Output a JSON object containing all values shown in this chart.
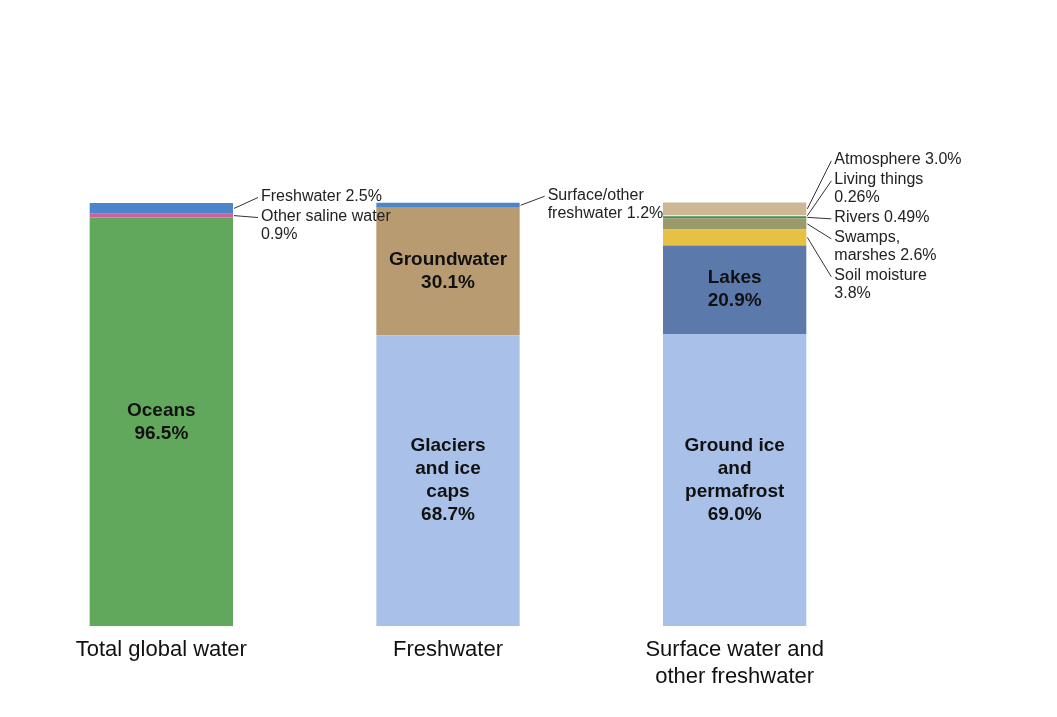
{
  "chart_data": {
    "type": "bar",
    "stacked": true,
    "tick_labels": "x",
    "categories": [
      "Total global water",
      "Freshwater",
      "Surface water and other freshwater"
    ],
    "series": [
      {
        "name": "Oceans",
        "color": "#62a85c",
        "values": [
          96.5,
          null,
          null
        ],
        "value_labels": [
          "96.5%",
          null,
          null
        ]
      },
      {
        "name": "Other saline water",
        "color": "#cf5fa0",
        "values": [
          0.9,
          null,
          null
        ],
        "value_labels": [
          "0.9%",
          null,
          null
        ]
      },
      {
        "name": "Freshwater",
        "color": "#4a86c8",
        "values": [
          2.5,
          null,
          null
        ],
        "value_labels": [
          "2.5%",
          null,
          null
        ]
      },
      {
        "name": "Glaciers and ice caps",
        "color": "#a9c1e8",
        "values": [
          null,
          68.7,
          null
        ],
        "value_labels": [
          null,
          "68.7%",
          null
        ]
      },
      {
        "name": "Groundwater",
        "color": "#b99b72",
        "values": [
          null,
          30.1,
          null
        ],
        "value_labels": [
          null,
          "30.1%",
          null
        ]
      },
      {
        "name": "Surface/other freshwater",
        "color": "#4a86c8",
        "values": [
          null,
          1.2,
          null
        ],
        "value_labels": [
          null,
          "1.2%",
          null
        ]
      },
      {
        "name": "Ground ice and permafrost",
        "color": "#a9c1e8",
        "values": [
          null,
          null,
          69.0
        ],
        "value_labels": [
          null,
          null,
          "69.0%"
        ]
      },
      {
        "name": "Lakes",
        "color": "#5b7aab",
        "values": [
          null,
          null,
          20.9
        ],
        "value_labels": [
          null,
          null,
          "20.9%"
        ]
      },
      {
        "name": "Soil moisture",
        "color": "#e6c143",
        "values": [
          null,
          null,
          3.8
        ],
        "value_labels": [
          null,
          null,
          "3.8%"
        ]
      },
      {
        "name": "Swamps, marshes",
        "color": "#9a9a6a",
        "values": [
          null,
          null,
          2.6
        ],
        "value_labels": [
          null,
          null,
          "2.6%"
        ]
      },
      {
        "name": "Rivers",
        "color": "#3f8f5a",
        "values": [
          null,
          null,
          0.49
        ],
        "value_labels": [
          null,
          null,
          "0.49%"
        ]
      },
      {
        "name": "Living things",
        "color": "#e8e8e0",
        "values": [
          null,
          null,
          0.26
        ],
        "value_labels": [
          null,
          null,
          "0.26%"
        ]
      },
      {
        "name": "Atmosphere",
        "color": "#cdb896",
        "values": [
          null,
          null,
          3.0
        ],
        "value_labels": [
          null,
          null,
          "3.0%"
        ]
      }
    ]
  }
}
